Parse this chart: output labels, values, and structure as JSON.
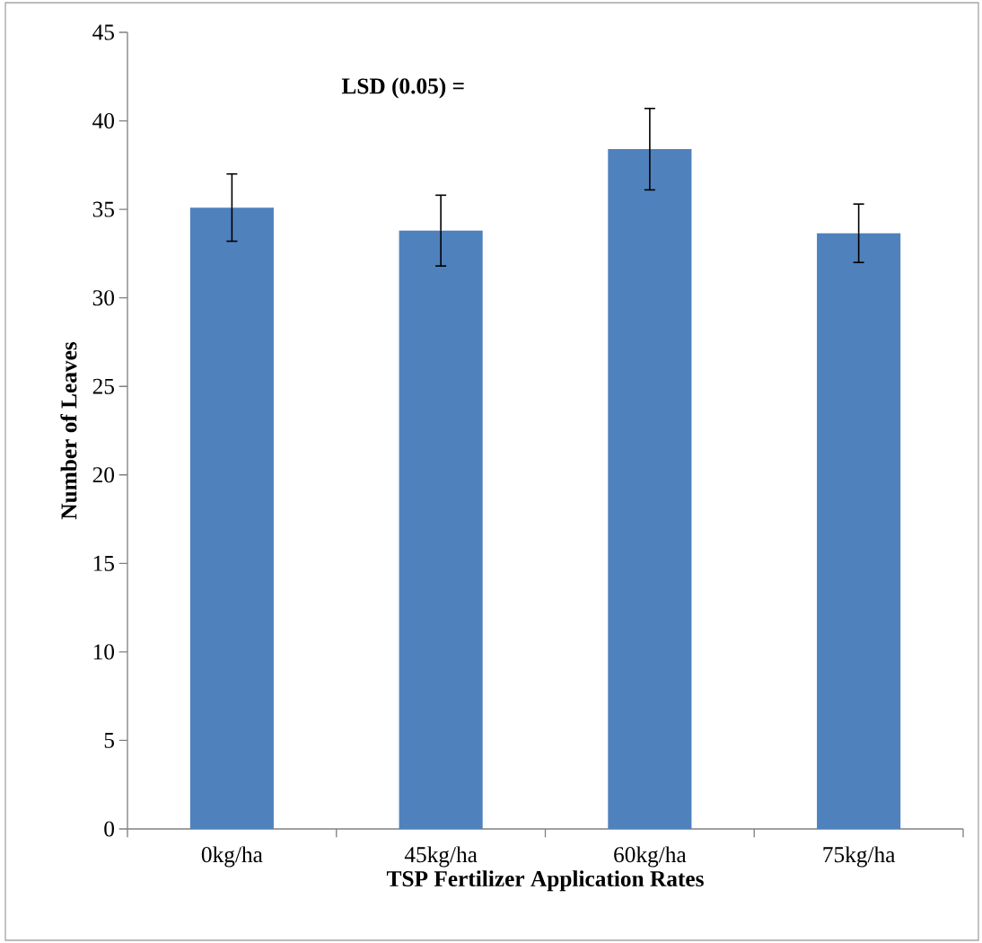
{
  "chart_data": {
    "type": "bar",
    "xlabel": "TSP Fertilizer Application Rates",
    "ylabel": "Number of Leaves",
    "categories": [
      "0kg/ha",
      "45kg/ha",
      "60kg/ha",
      "75kg/ha"
    ],
    "values": [
      35.1,
      33.8,
      38.4,
      33.65
    ],
    "errors": [
      1.9,
      2.0,
      2.3,
      1.65
    ],
    "color": "#4f81bd",
    "ylim": [
      0,
      45
    ],
    "yticks": [
      0,
      5,
      10,
      15,
      20,
      25,
      30,
      35,
      40,
      45
    ],
    "grid": false,
    "annotations": [
      "LSD (0.05) ="
    ]
  }
}
